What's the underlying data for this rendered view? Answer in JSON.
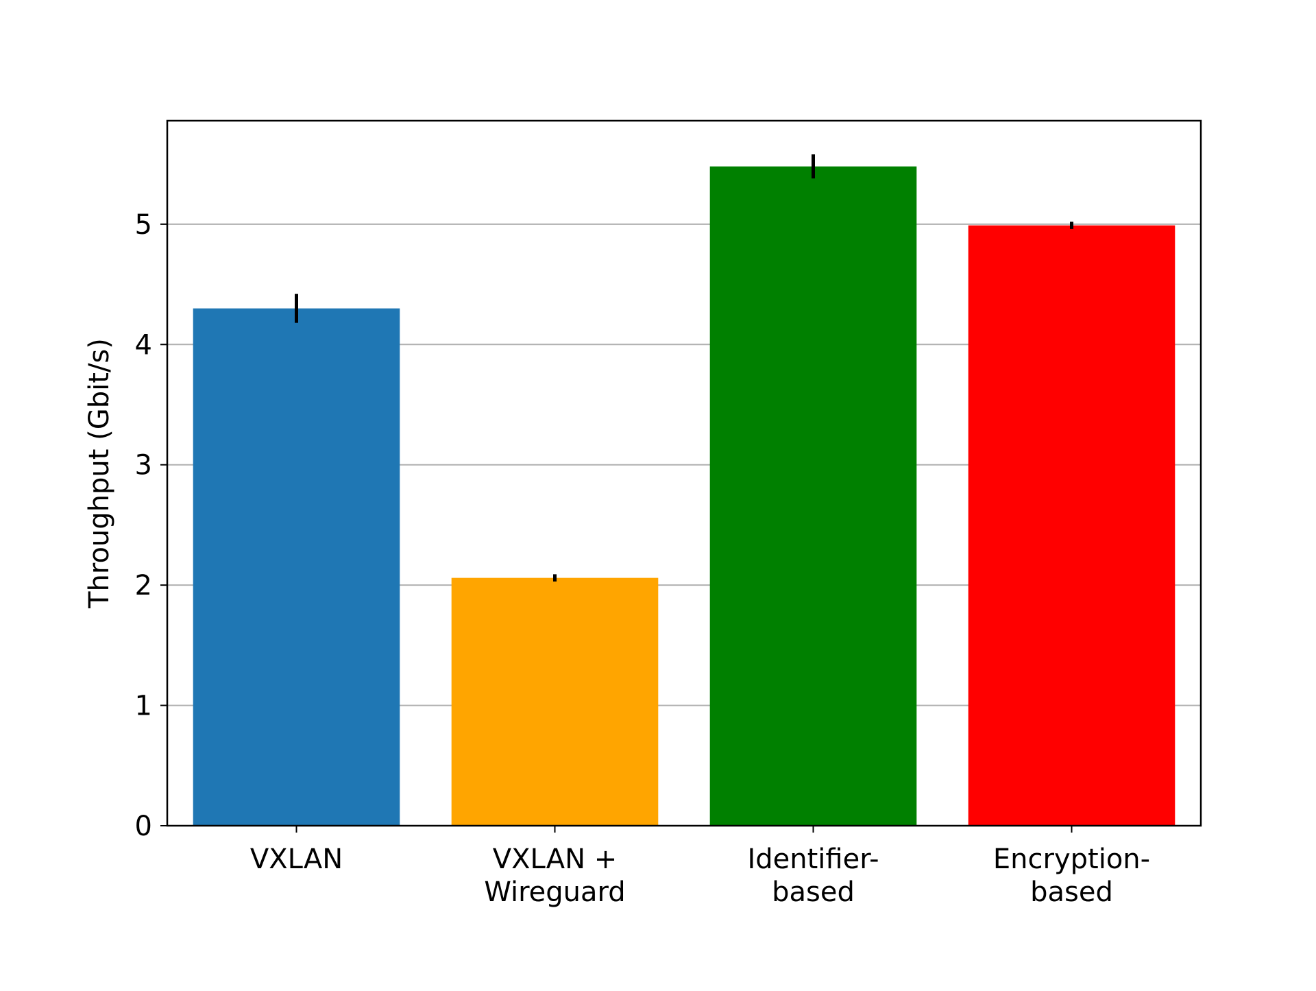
{
  "chart_data": {
    "type": "bar",
    "title": "",
    "xlabel": "",
    "ylabel": "Throughput (Gbit/s)",
    "ylim": [
      0,
      5.86
    ],
    "yticks": [
      "0",
      "1",
      "2",
      "3",
      "4",
      "5"
    ],
    "grid": "horizontal",
    "categories": [
      [
        "VXLAN"
      ],
      [
        "VXLAN +",
        "Wireguard"
      ],
      [
        "Identifier-",
        "based"
      ],
      [
        "Encryption-",
        "based"
      ]
    ],
    "values": [
      4.3,
      2.06,
      5.48,
      4.99
    ],
    "errors": [
      0.12,
      0.03,
      0.1,
      0.03
    ],
    "colors": [
      "#1f77b4",
      "#ffa500",
      "#008000",
      "#ff0000"
    ]
  }
}
